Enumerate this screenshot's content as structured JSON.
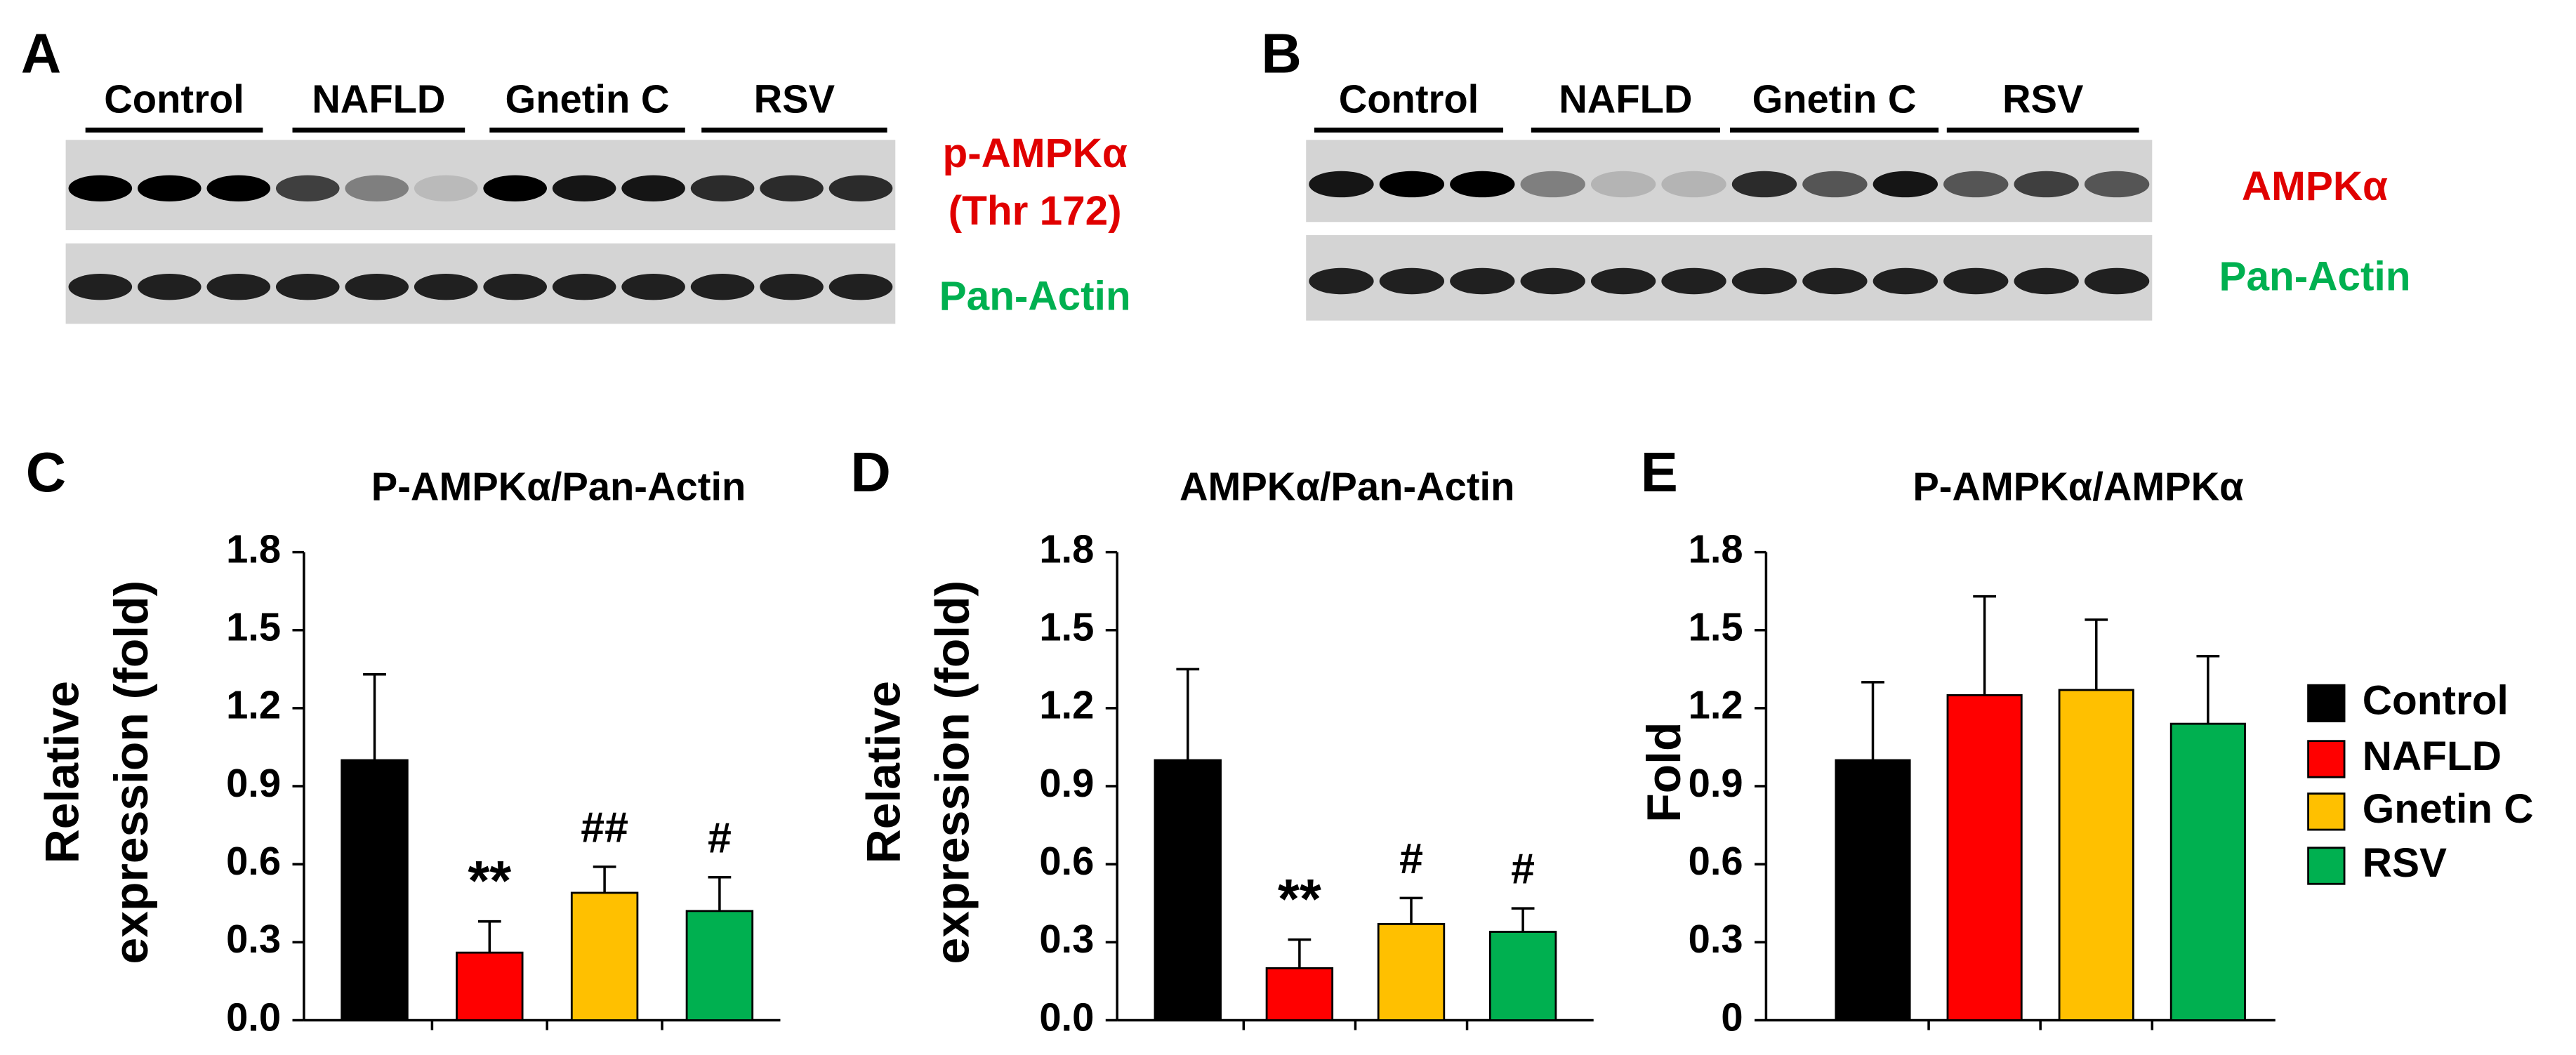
{
  "blots": [
    {
      "panel": "A",
      "groups": [
        "Control",
        "NAFLD",
        "Gnetin C",
        "RSV"
      ],
      "rows": [
        {
          "lines": [
            "p-AMPKα",
            "(Thr 172)"
          ],
          "color": "#e00000"
        },
        {
          "lines": [
            "Pan-Actin"
          ],
          "color": "#00b050"
        }
      ]
    },
    {
      "panel": "B",
      "groups": [
        "Control",
        "NAFLD",
        "Gnetin C",
        "RSV"
      ],
      "rows": [
        {
          "lines": [
            "AMPKα"
          ],
          "color": "#e00000"
        },
        {
          "lines": [
            "Pan-Actin"
          ],
          "color": "#00b050"
        }
      ]
    }
  ],
  "chart_data": [
    {
      "type": "bar",
      "panel": "C",
      "title": "P-AMPKα/Pan-Actin",
      "y_label": [
        "Relative",
        "expression (fold)"
      ],
      "categories": [
        "Control",
        "NAFLD",
        "Gnetin C",
        "RSV"
      ],
      "values": [
        1.0,
        0.26,
        0.49,
        0.42
      ],
      "errors": [
        0.33,
        0.12,
        0.1,
        0.13
      ],
      "annotations": [
        null,
        "**",
        "##",
        "#"
      ],
      "colors": [
        "#000000",
        "#ff0000",
        "#ffc000",
        "#00b050"
      ],
      "ylim": [
        0,
        1.8
      ],
      "yticks": [
        {
          "value": 0,
          "label": "0.0"
        },
        0.3,
        0.6,
        0.9,
        1.2,
        1.5,
        1.8
      ]
    },
    {
      "type": "bar",
      "panel": "D",
      "title": "AMPKα/Pan-Actin",
      "y_label": [
        "Relative",
        "expression (fold)"
      ],
      "categories": [
        "Control",
        "NAFLD",
        "Gnetin C",
        "RSV"
      ],
      "values": [
        1.0,
        0.2,
        0.37,
        0.34
      ],
      "errors": [
        0.35,
        0.11,
        0.1,
        0.09
      ],
      "annotations": [
        null,
        "**",
        "#",
        "#"
      ],
      "colors": [
        "#000000",
        "#ff0000",
        "#ffc000",
        "#00b050"
      ],
      "ylim": [
        0,
        1.8
      ],
      "yticks": [
        {
          "value": 0,
          "label": "0.0"
        },
        0.3,
        0.6,
        0.9,
        1.2,
        1.5,
        1.8
      ]
    },
    {
      "type": "bar",
      "panel": "E",
      "title": "P-AMPKα/AMPKα",
      "y_label": [
        "Fold"
      ],
      "categories": [
        "Control",
        "NAFLD",
        "Gnetin C",
        "RSV"
      ],
      "values": [
        1.0,
        1.25,
        1.27,
        1.14
      ],
      "errors": [
        0.3,
        0.38,
        0.27,
        0.26
      ],
      "colors": [
        "#000000",
        "#ff0000",
        "#ffc000",
        "#00b050"
      ],
      "legend": true,
      "ylim": [
        0,
        1.8
      ],
      "yticks": [
        0,
        0.3,
        0.6,
        0.9,
        1.2,
        1.5,
        1.8
      ]
    }
  ]
}
